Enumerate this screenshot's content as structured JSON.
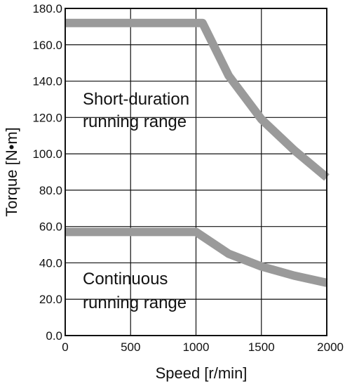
{
  "chart_data": {
    "type": "line",
    "xlabel": "Speed [r/min]",
    "ylabel": "Torque [N•m]",
    "xlim": [
      0,
      2000
    ],
    "ylim": [
      0,
      180
    ],
    "x_ticks": [
      "0",
      "500",
      "1000",
      "1500",
      "2000"
    ],
    "y_ticks": [
      "0.0",
      "20.0",
      "40.0",
      "60.0",
      "80.0",
      "100.0",
      "120.0",
      "140.0",
      "160.0",
      "180.0"
    ],
    "grid": true,
    "line_color": "#9a9a9a",
    "series": [
      {
        "x": [
          0,
          1050,
          1250,
          1500,
          1750,
          2000
        ],
        "y": [
          172,
          172,
          143,
          119,
          102,
          87
        ]
      },
      {
        "x": [
          0,
          1000,
          1250,
          1500,
          1750,
          2000
        ],
        "y": [
          57,
          57,
          45,
          38,
          33,
          29
        ]
      }
    ],
    "annotations": [
      {
        "lines": [
          "Short-duration",
          "running range"
        ]
      },
      {
        "lines": [
          "Continuous",
          "running range"
        ]
      }
    ]
  }
}
